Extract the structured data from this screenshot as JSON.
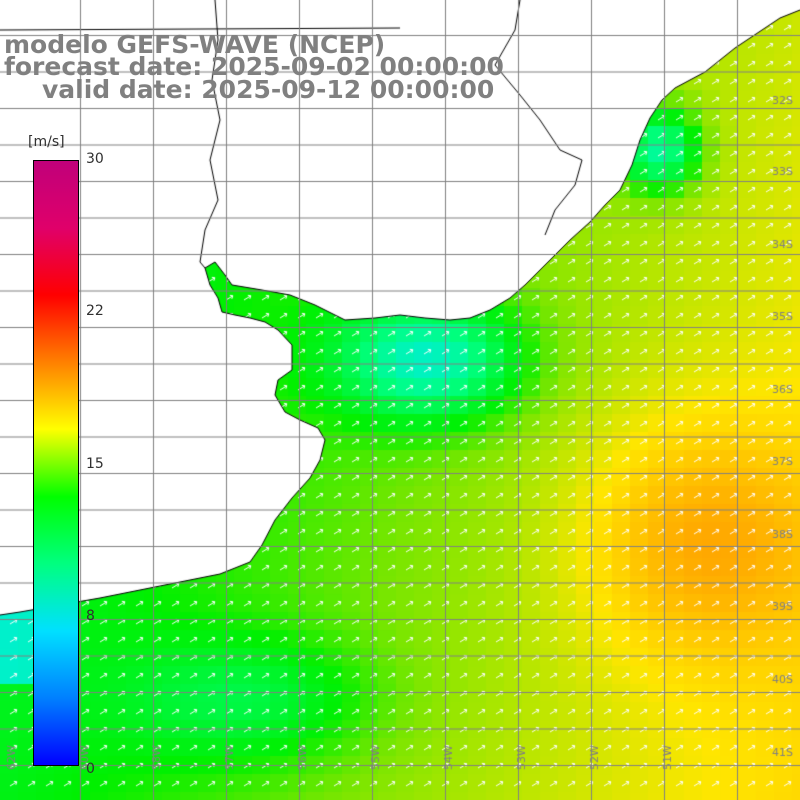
{
  "title": {
    "line1": "modelo GEFS-WAVE (NCEP)",
    "line2": "forecast date: 2025-09-02 00:00:00",
    "line3": "valid date: 2025-09-12 00:00:00"
  },
  "legend": {
    "unit": "[m/s]",
    "ticks": [
      "30",
      "22",
      "15",
      "8",
      "0"
    ],
    "colors": [
      "#0000ff",
      "#0080ff",
      "#00e0ff",
      "#00ff80",
      "#00ff00",
      "#ffff00",
      "#ff8000",
      "#ff0000",
      "#e0006a",
      "#c0007a"
    ]
  },
  "map": {
    "lat_labels": [
      "32S",
      "33S",
      "34S",
      "35S",
      "36S",
      "37S",
      "38S",
      "39S",
      "40S",
      "41S"
    ],
    "lon_labels": [
      "62W",
      "60W",
      "58W",
      "57W",
      "56W",
      "55W",
      "54W",
      "53W",
      "52W",
      "51W"
    ],
    "land_color": "#ffffff",
    "coast_color": "#000000",
    "grid_color": "#808080",
    "arrow_color": "#ffffff"
  }
}
